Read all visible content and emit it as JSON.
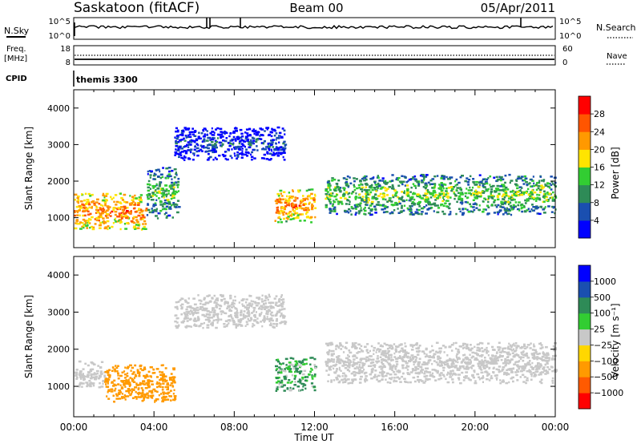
{
  "header": {
    "station": "Saskatoon (fitACF)",
    "beam": "Beam 00",
    "date": "05/Apr/2011"
  },
  "noise_panel": {
    "left_label": "N.Sky",
    "right_label": "N.Search",
    "left_ticks": [
      "10^5",
      "10^0"
    ],
    "right_ticks": [
      "10^5",
      "10^0"
    ]
  },
  "freq_panel": {
    "left_label_1": "Freq.",
    "left_label_2": "[MHz]",
    "right_label": "Nave",
    "left_ticks": [
      "18",
      "8"
    ],
    "right_ticks": [
      "60",
      "0"
    ]
  },
  "cpid": {
    "label": "CPID",
    "mode": "themis 3300"
  },
  "colors": {
    "power_scale": [
      "#0000ff",
      "#1a4fb0",
      "#2e8b57",
      "#32cd32",
      "#ffe400",
      "#ff9900",
      "#ff5500",
      "#ff0000"
    ],
    "velocity_scale": [
      "#ff0000",
      "#ff5a00",
      "#ff9a00",
      "#ffd700",
      "#c8c8c8",
      "#32cd32",
      "#2e8b57",
      "#1a4fb0",
      "#0000ff"
    ]
  },
  "chart_data": [
    {
      "type": "heatmap",
      "panel": "power",
      "ylabel": "Slant Range [km]",
      "yticks": [
        "1000",
        "2000",
        "3000",
        "4000"
      ],
      "ylim": [
        180,
        4500
      ],
      "xlim": [
        0,
        24
      ],
      "colorbar": {
        "label": "Power [dB]",
        "ticks": [
          "4",
          "8",
          "12",
          "16",
          "20",
          "24",
          "28"
        ],
        "range": [
          0,
          32
        ]
      },
      "echo_regions": [
        {
          "t0": 0.0,
          "t1": 3.6,
          "r0": 700,
          "r1": 1700,
          "value": 24
        },
        {
          "t0": 3.6,
          "t1": 5.2,
          "r0": 1000,
          "r1": 2400,
          "value": 14
        },
        {
          "t0": 5.0,
          "t1": 10.5,
          "r0": 2600,
          "r1": 3500,
          "value": 6
        },
        {
          "t0": 10.0,
          "t1": 12.0,
          "r0": 900,
          "r1": 1800,
          "value": 24
        },
        {
          "t0": 12.5,
          "t1": 24.0,
          "r0": 1100,
          "r1": 2200,
          "value": 15
        }
      ]
    },
    {
      "type": "heatmap",
      "panel": "velocity",
      "ylabel": "Slant Range [km]",
      "yticks": [
        "1000",
        "2000",
        "3000",
        "4000"
      ],
      "ylim": [
        180,
        4500
      ],
      "xlim": [
        0,
        24
      ],
      "xlabel": "Time UT",
      "xticks": [
        "00:00",
        "04:00",
        "08:00",
        "12:00",
        "16:00",
        "20:00",
        "00:00"
      ],
      "colorbar": {
        "label": "Velocity [m s⁻¹]",
        "ticks": [
          "1000",
          "500",
          "100",
          "25",
          "−25",
          "−100",
          "−500",
          "−1000"
        ]
      },
      "echo_regions": [
        {
          "t0": 0.0,
          "t1": 1.5,
          "r0": 1000,
          "r1": 1700,
          "value": 0
        },
        {
          "t0": 1.5,
          "t1": 5.0,
          "r0": 600,
          "r1": 1600,
          "value": -300
        },
        {
          "t0": 5.0,
          "t1": 10.5,
          "r0": 2600,
          "r1": 3500,
          "value": 0
        },
        {
          "t0": 10.0,
          "t1": 12.0,
          "r0": 900,
          "r1": 1800,
          "value": 100
        },
        {
          "t0": 12.5,
          "t1": 24.0,
          "r0": 1100,
          "r1": 2200,
          "value": 0
        }
      ]
    }
  ]
}
